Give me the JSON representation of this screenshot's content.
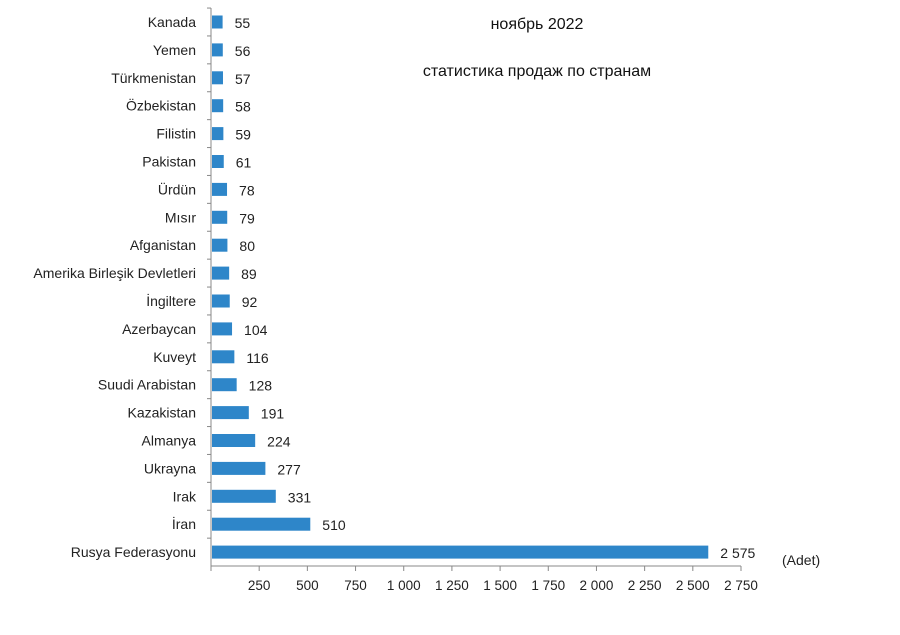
{
  "chart_data": {
    "type": "bar",
    "orientation": "horizontal",
    "title": "ноябрь 2022",
    "subtitle": "статистика продаж по странам",
    "unit": "(Adet)",
    "categories": [
      "Kanada",
      "Yemen",
      "Türkmenistan",
      "Özbekistan",
      "Filistin",
      "Pakistan",
      "Ürdün",
      "Mısır",
      "Afganistan",
      "Amerika Birleşik Devletleri",
      "İngiltere",
      "Azerbaycan",
      "Kuveyt",
      "Suudi Arabistan",
      "Kazakistan",
      "Almanya",
      "Ukrayna",
      "Irak",
      "İran",
      "Rusya Federasyonu"
    ],
    "values": [
      55,
      56,
      57,
      58,
      59,
      61,
      78,
      79,
      80,
      89,
      92,
      104,
      116,
      128,
      191,
      224,
      277,
      331,
      510,
      2575
    ],
    "value_labels": [
      "55",
      "56",
      "57",
      "58",
      "59",
      "61",
      "78",
      "79",
      "80",
      "89",
      "92",
      "104",
      "116",
      "128",
      "191",
      "224",
      "277",
      "331",
      "510",
      "2 575"
    ],
    "xlim": [
      0,
      2750
    ],
    "x_ticks": [
      250,
      500,
      750,
      1000,
      1250,
      1500,
      1750,
      2000,
      2250,
      2500,
      2750
    ],
    "x_tick_labels": [
      "250",
      "500",
      "750",
      "1 000",
      "1 250",
      "1 500",
      "1 750",
      "2 000",
      "2 250",
      "2 500",
      "2 750"
    ],
    "grid": false,
    "legend": "none",
    "bar_color": "#2e86c9"
  }
}
